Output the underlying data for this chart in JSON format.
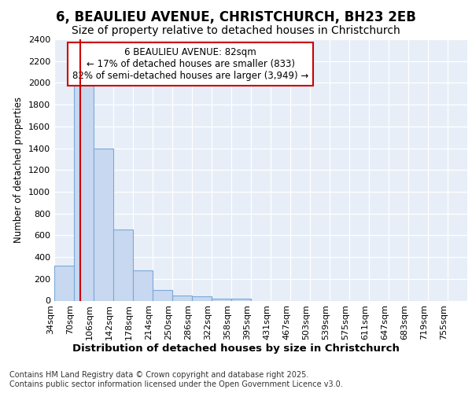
{
  "title1": "6, BEAULIEU AVENUE, CHRISTCHURCH, BH23 2EB",
  "title2": "Size of property relative to detached houses in Christchurch",
  "xlabel": "Distribution of detached houses by size in Christchurch",
  "ylabel": "Number of detached properties",
  "bin_labels": [
    "34sqm",
    "70sqm",
    "106sqm",
    "142sqm",
    "178sqm",
    "214sqm",
    "250sqm",
    "286sqm",
    "322sqm",
    "358sqm",
    "395sqm",
    "431sqm",
    "467sqm",
    "503sqm",
    "539sqm",
    "575sqm",
    "611sqm",
    "647sqm",
    "683sqm",
    "719sqm",
    "755sqm"
  ],
  "bin_edges": [
    34,
    70,
    106,
    142,
    178,
    214,
    250,
    286,
    322,
    358,
    395,
    431,
    467,
    503,
    539,
    575,
    611,
    647,
    683,
    719,
    755
  ],
  "bar_heights": [
    320,
    2000,
    1400,
    650,
    280,
    100,
    45,
    40,
    20,
    15,
    0,
    0,
    0,
    0,
    0,
    0,
    0,
    0,
    0,
    0
  ],
  "bar_color": "#c8d8f0",
  "bar_edgecolor": "#7aa8d8",
  "bar_linewidth": 0.8,
  "property_sqm": 82,
  "red_line_color": "#cc0000",
  "annotation_text": "6 BEAULIEU AVENUE: 82sqm\n← 17% of detached houses are smaller (833)\n82% of semi-detached houses are larger (3,949) →",
  "annotation_box_edgecolor": "#cc0000",
  "annotation_box_facecolor": "#ffffff",
  "ylim": [
    0,
    2400
  ],
  "yticks": [
    0,
    200,
    400,
    600,
    800,
    1000,
    1200,
    1400,
    1600,
    1800,
    2000,
    2200,
    2400
  ],
  "background_color": "#ffffff",
  "plot_background": "#e8eef8",
  "grid_color": "#ffffff",
  "footer_line1": "Contains HM Land Registry data © Crown copyright and database right 2025.",
  "footer_line2": "Contains public sector information licensed under the Open Government Licence v3.0.",
  "title1_fontsize": 12,
  "title2_fontsize": 10,
  "xlabel_fontsize": 9.5,
  "ylabel_fontsize": 8.5,
  "tick_fontsize": 8,
  "annotation_fontsize": 8.5,
  "footer_fontsize": 7
}
